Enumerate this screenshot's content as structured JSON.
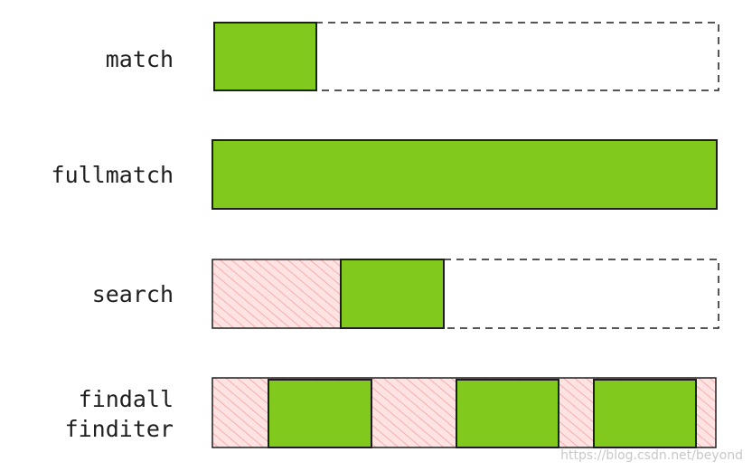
{
  "rows": [
    {
      "labels": [
        "match"
      ]
    },
    {
      "labels": [
        "fullmatch"
      ]
    },
    {
      "labels": [
        "search"
      ]
    },
    {
      "labels": [
        "findall",
        "finditer"
      ]
    }
  ],
  "watermark": "https://blog.csdn.net/beyond"
}
